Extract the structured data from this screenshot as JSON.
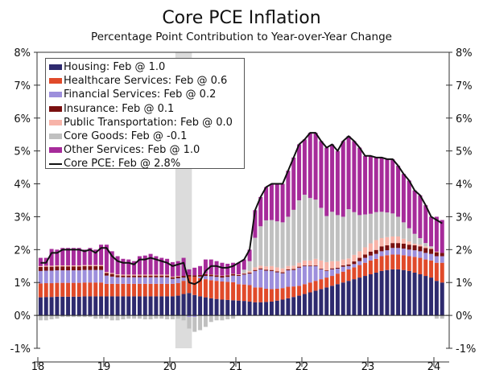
{
  "chart_data": {
    "type": "bar",
    "stacked": true,
    "title": "Core PCE Inflation",
    "subtitle": "Percentage Point Contribution to Year-over-Year Change",
    "x_start": "2018-01",
    "x_end": "2024-02",
    "frequency": "monthly",
    "xtick_labels": [
      "18",
      "19",
      "20",
      "21",
      "22",
      "23",
      "24"
    ],
    "ytick_labels": [
      "8%",
      "7%",
      "6%",
      "5%",
      "4%",
      "3%",
      "2%",
      "1%",
      "0%",
      "-1%"
    ],
    "ylim": [
      -1,
      8
    ],
    "y_axis_both_sides": true,
    "grid": false,
    "legend_position": "top-left",
    "shaded_period": [
      "2020-02",
      "2020-04"
    ],
    "shaded_color": "#dcdcdc",
    "series": [
      {
        "name": "Housing: Feb @ 1.0",
        "color": "#2e2a6e",
        "values": [
          0.55,
          0.56,
          0.56,
          0.57,
          0.57,
          0.57,
          0.57,
          0.57,
          0.58,
          0.58,
          0.58,
          0.58,
          0.58,
          0.58,
          0.58,
          0.58,
          0.58,
          0.58,
          0.58,
          0.58,
          0.58,
          0.58,
          0.58,
          0.58,
          0.58,
          0.6,
          0.65,
          0.68,
          0.62,
          0.58,
          0.55,
          0.52,
          0.5,
          0.48,
          0.47,
          0.46,
          0.45,
          0.44,
          0.42,
          0.4,
          0.4,
          0.41,
          0.42,
          0.45,
          0.48,
          0.52,
          0.56,
          0.6,
          0.65,
          0.7,
          0.75,
          0.8,
          0.85,
          0.9,
          0.95,
          1.0,
          1.05,
          1.1,
          1.15,
          1.2,
          1.25,
          1.3,
          1.35,
          1.38,
          1.4,
          1.4,
          1.38,
          1.35,
          1.3,
          1.25,
          1.2,
          1.15,
          1.05,
          1.0
        ]
      },
      {
        "name": "Healthcare Services: Feb @ 0.6",
        "color": "#e04a2a",
        "values": [
          0.42,
          0.42,
          0.42,
          0.42,
          0.42,
          0.42,
          0.42,
          0.42,
          0.42,
          0.42,
          0.42,
          0.42,
          0.38,
          0.38,
          0.38,
          0.38,
          0.38,
          0.38,
          0.38,
          0.38,
          0.38,
          0.38,
          0.38,
          0.38,
          0.38,
          0.38,
          0.4,
          0.5,
          0.55,
          0.55,
          0.55,
          0.55,
          0.55,
          0.55,
          0.55,
          0.55,
          0.5,
          0.5,
          0.5,
          0.45,
          0.45,
          0.4,
          0.38,
          0.36,
          0.35,
          0.35,
          0.32,
          0.3,
          0.3,
          0.3,
          0.3,
          0.3,
          0.3,
          0.3,
          0.32,
          0.33,
          0.35,
          0.36,
          0.38,
          0.4,
          0.42,
          0.42,
          0.45,
          0.45,
          0.45,
          0.45,
          0.45,
          0.45,
          0.48,
          0.5,
          0.5,
          0.52,
          0.55,
          0.6
        ]
      },
      {
        "name": "Financial Services: Feb @ 0.2",
        "color": "#9d8fdc",
        "values": [
          0.38,
          0.38,
          0.38,
          0.38,
          0.38,
          0.38,
          0.38,
          0.38,
          0.38,
          0.38,
          0.38,
          0.38,
          0.25,
          0.22,
          0.2,
          0.2,
          0.2,
          0.2,
          0.2,
          0.2,
          0.2,
          0.2,
          0.2,
          0.2,
          0.15,
          0.15,
          0.1,
          -0.05,
          -0.05,
          0.05,
          0.1,
          0.12,
          0.12,
          0.12,
          0.15,
          0.2,
          0.25,
          0.3,
          0.35,
          0.5,
          0.55,
          0.55,
          0.55,
          0.5,
          0.45,
          0.5,
          0.5,
          0.55,
          0.55,
          0.5,
          0.45,
          0.3,
          0.2,
          0.2,
          0.15,
          0.15,
          0.1,
          0.1,
          0.12,
          0.15,
          0.15,
          0.15,
          0.15,
          0.15,
          0.2,
          0.2,
          0.2,
          0.2,
          0.2,
          0.2,
          0.2,
          0.2,
          0.2,
          0.2
        ]
      },
      {
        "name": "Insurance: Feb @ 0.1",
        "color": "#7a1010",
        "values": [
          0.12,
          0.12,
          0.12,
          0.12,
          0.12,
          0.12,
          0.12,
          0.12,
          0.12,
          0.12,
          0.12,
          0.12,
          0.08,
          0.08,
          0.06,
          0.05,
          0.05,
          0.05,
          0.05,
          0.05,
          0.05,
          0.05,
          0.05,
          0.05,
          0.05,
          0.05,
          0.05,
          0.05,
          0.05,
          0.05,
          0.05,
          0.05,
          0.05,
          0.05,
          0.05,
          0.05,
          0.03,
          0.03,
          0.03,
          0.03,
          0.03,
          0.03,
          0.03,
          0.03,
          0.03,
          0.03,
          0.03,
          0.03,
          0.02,
          0.02,
          0.02,
          0.02,
          0.02,
          0.03,
          0.03,
          0.04,
          0.05,
          0.08,
          0.1,
          0.1,
          0.12,
          0.12,
          0.15,
          0.15,
          0.15,
          0.15,
          0.15,
          0.15,
          0.15,
          0.15,
          0.15,
          0.15,
          0.12,
          0.1
        ]
      },
      {
        "name": "Public Transportation: Feb @ 0.0",
        "color": "#f7b3a8",
        "values": [
          0.03,
          0.03,
          0.03,
          0.03,
          0.03,
          0.03,
          0.03,
          0.03,
          0.03,
          0.03,
          0.03,
          0.03,
          0.03,
          0.03,
          0.03,
          0.03,
          0.03,
          0.03,
          0.03,
          0.03,
          0.03,
          0.03,
          0.03,
          0.03,
          0.02,
          0.02,
          0,
          0,
          0,
          0,
          0.01,
          0.01,
          0.01,
          0.01,
          0.01,
          0.01,
          0.02,
          0.02,
          0.05,
          0.08,
          0.08,
          0.1,
          0.12,
          0.12,
          0.12,
          0.1,
          0.1,
          0.12,
          0.15,
          0.15,
          0.2,
          0.25,
          0.25,
          0.22,
          0.2,
          0.18,
          0.18,
          0.2,
          0.2,
          0.22,
          0.25,
          0.3,
          0.25,
          0.25,
          0.2,
          0.2,
          0.15,
          0.1,
          0.05,
          0.05,
          0.05,
          0.03,
          0.02,
          0.0
        ]
      },
      {
        "name": "Core Goods: Feb @ -0.1",
        "color": "#c0c0c0",
        "values": [
          -0.15,
          -0.15,
          -0.12,
          -0.1,
          -0.05,
          -0.05,
          -0.05,
          -0.05,
          -0.05,
          -0.05,
          -0.1,
          -0.1,
          -0.1,
          -0.15,
          -0.15,
          -0.12,
          -0.1,
          -0.1,
          -0.1,
          -0.12,
          -0.12,
          -0.1,
          -0.1,
          -0.12,
          -0.12,
          -0.1,
          -0.15,
          -0.35,
          -0.45,
          -0.45,
          -0.35,
          -0.2,
          -0.15,
          -0.15,
          -0.12,
          -0.1,
          0.0,
          0.1,
          0.3,
          0.9,
          1.2,
          1.4,
          1.4,
          1.4,
          1.4,
          1.5,
          1.7,
          1.9,
          2.0,
          1.9,
          1.8,
          1.6,
          1.4,
          1.5,
          1.4,
          1.3,
          1.5,
          1.3,
          1.1,
          1.0,
          0.9,
          0.85,
          0.8,
          0.75,
          0.7,
          0.6,
          0.5,
          0.4,
          0.3,
          0.2,
          0.1,
          0.05,
          -0.1,
          -0.1
        ]
      },
      {
        "name": "Other Services: Feb @ 1.0",
        "color": "#a62b9a",
        "values": [
          0.25,
          0.24,
          0.51,
          0.48,
          0.53,
          0.53,
          0.53,
          0.53,
          0.47,
          0.52,
          0.47,
          0.62,
          0.83,
          0.66,
          0.55,
          0.48,
          0.46,
          0.41,
          0.56,
          0.58,
          0.63,
          0.56,
          0.51,
          0.48,
          0.44,
          0.45,
          0.55,
          0.17,
          0.23,
          0.27,
          0.44,
          0.45,
          0.42,
          0.39,
          0.34,
          0.33,
          0.35,
          0.31,
          0.35,
          0.84,
          0.89,
          1.01,
          1.1,
          1.14,
          1.17,
          1.4,
          1.59,
          1.7,
          1.68,
          1.98,
          2.03,
          2.03,
          2.08,
          2.05,
          1.95,
          2.3,
          2.22,
          2.16,
          2.05,
          1.78,
          1.76,
          1.66,
          1.65,
          1.62,
          1.65,
          1.55,
          1.47,
          1.45,
          1.32,
          1.3,
          1.15,
          0.9,
          1.06,
          1.0
        ]
      }
    ],
    "line": {
      "name": "Core PCE: Feb @ 2.8%",
      "color": "#111111",
      "values": [
        1.6,
        1.6,
        1.9,
        1.9,
        2.0,
        2.0,
        2.0,
        2.0,
        1.95,
        2.0,
        1.9,
        2.05,
        2.05,
        1.8,
        1.65,
        1.6,
        1.6,
        1.55,
        1.7,
        1.7,
        1.75,
        1.7,
        1.65,
        1.6,
        1.5,
        1.55,
        1.6,
        1.0,
        0.95,
        1.05,
        1.35,
        1.5,
        1.5,
        1.45,
        1.45,
        1.5,
        1.6,
        1.7,
        2.0,
        3.2,
        3.6,
        3.9,
        4.0,
        4.0,
        4.0,
        4.4,
        4.8,
        5.2,
        5.35,
        5.55,
        5.55,
        5.3,
        5.1,
        5.2,
        5.0,
        5.3,
        5.45,
        5.3,
        5.1,
        4.85,
        4.85,
        4.8,
        4.8,
        4.75,
        4.75,
        4.55,
        4.3,
        4.1,
        3.8,
        3.65,
        3.35,
        3.0,
        2.9,
        2.8
      ]
    }
  }
}
